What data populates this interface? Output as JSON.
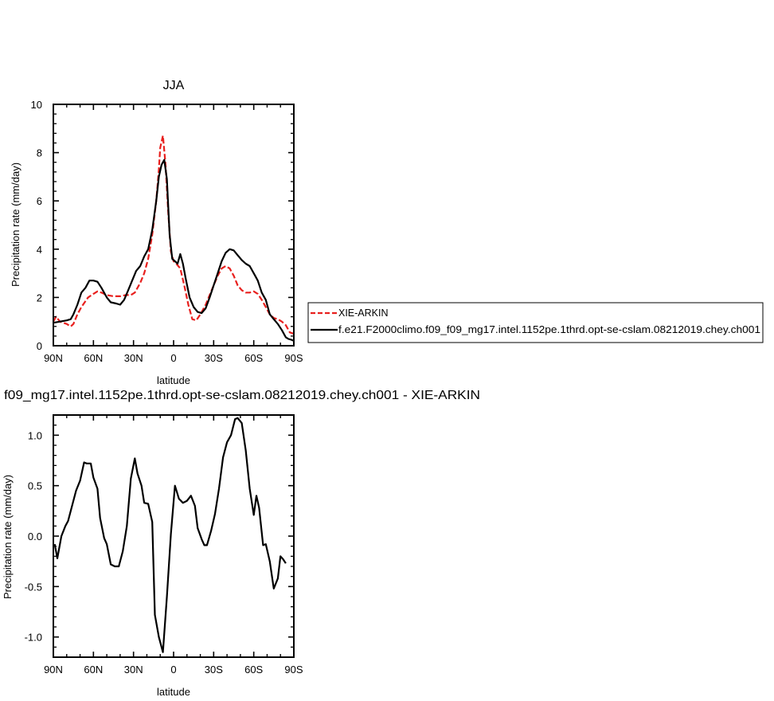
{
  "chart_data": [
    {
      "type": "line",
      "title": "JJA",
      "xlabel": "latitude",
      "ylabel": "Precipitation rate (mm/day)",
      "xlim": [
        90,
        -90
      ],
      "ylim": [
        0,
        10
      ],
      "x_ticks": [
        90,
        60,
        30,
        0,
        -30,
        -60,
        -90
      ],
      "x_tick_labels": [
        "90N",
        "60N",
        "30N",
        "0",
        "30S",
        "60S",
        "90S"
      ],
      "y_ticks": [
        0,
        2,
        4,
        6,
        8,
        10
      ],
      "y_tick_labels": [
        "0",
        "2",
        "4",
        "6",
        "8",
        "10"
      ],
      "legend_position": "right",
      "series": [
        {
          "name": "XIE-ARKIN",
          "color": "#e8201e",
          "dash": "dashed",
          "points": [
            [
              90,
              1.0
            ],
            [
              88,
              1.2
            ],
            [
              85,
              1.0
            ],
            [
              80,
              0.9
            ],
            [
              77,
              0.8
            ],
            [
              75,
              0.9
            ],
            [
              72,
              1.3
            ],
            [
              69,
              1.6
            ],
            [
              64,
              2.0
            ],
            [
              60,
              2.15
            ],
            [
              57,
              2.25
            ],
            [
              54,
              2.2
            ],
            [
              50,
              2.1
            ],
            [
              45,
              2.05
            ],
            [
              40,
              2.05
            ],
            [
              36,
              2.1
            ],
            [
              32,
              2.1
            ],
            [
              29,
              2.2
            ],
            [
              25,
              2.6
            ],
            [
              22,
              3.0
            ],
            [
              19,
              3.6
            ],
            [
              16,
              4.6
            ],
            [
              13,
              6.0
            ],
            [
              11,
              7.3
            ],
            [
              10,
              8.2
            ],
            [
              8,
              8.7
            ],
            [
              6,
              7.5
            ],
            [
              4,
              5.5
            ],
            [
              2,
              3.9
            ],
            [
              0,
              3.5
            ],
            [
              -2,
              3.4
            ],
            [
              -5,
              3.2
            ],
            [
              -8,
              2.5
            ],
            [
              -11,
              1.7
            ],
            [
              -14,
              1.1
            ],
            [
              -17,
              1.05
            ],
            [
              -20,
              1.3
            ],
            [
              -24,
              1.7
            ],
            [
              -27,
              2.1
            ],
            [
              -30,
              2.5
            ],
            [
              -33,
              2.9
            ],
            [
              -36,
              3.2
            ],
            [
              -39,
              3.3
            ],
            [
              -42,
              3.2
            ],
            [
              -45,
              2.9
            ],
            [
              -48,
              2.5
            ],
            [
              -51,
              2.3
            ],
            [
              -54,
              2.2
            ],
            [
              -57,
              2.2
            ],
            [
              -60,
              2.25
            ],
            [
              -63,
              2.15
            ],
            [
              -66,
              1.9
            ],
            [
              -69,
              1.6
            ],
            [
              -72,
              1.3
            ],
            [
              -75,
              1.15
            ],
            [
              -78,
              1.1
            ],
            [
              -81,
              1.0
            ],
            [
              -84,
              0.85
            ],
            [
              -87,
              0.55
            ],
            [
              -90,
              0.5
            ]
          ]
        },
        {
          "name": "f.e21.F2000climo.f09_f09_mg17.intel.1152pe.1thrd.opt-se-cslam.08212019.chey.ch001",
          "color": "#000000",
          "dash": "solid",
          "points": [
            [
              90,
              0.95
            ],
            [
              85,
              1.0
            ],
            [
              80,
              1.05
            ],
            [
              77,
              1.1
            ],
            [
              75,
              1.3
            ],
            [
              72,
              1.7
            ],
            [
              69,
              2.2
            ],
            [
              66,
              2.4
            ],
            [
              63,
              2.7
            ],
            [
              60,
              2.7
            ],
            [
              57,
              2.65
            ],
            [
              54,
              2.4
            ],
            [
              50,
              2.0
            ],
            [
              47,
              1.8
            ],
            [
              43,
              1.75
            ],
            [
              40,
              1.7
            ],
            [
              37,
              1.9
            ],
            [
              34,
              2.3
            ],
            [
              31,
              2.7
            ],
            [
              28,
              3.1
            ],
            [
              25,
              3.3
            ],
            [
              22,
              3.7
            ],
            [
              19,
              4.0
            ],
            [
              16,
              4.8
            ],
            [
              13,
              6.0
            ],
            [
              11,
              7.0
            ],
            [
              9,
              7.5
            ],
            [
              7,
              7.7
            ],
            [
              5,
              6.9
            ],
            [
              3,
              4.6
            ],
            [
              1,
              3.6
            ],
            [
              -1,
              3.5
            ],
            [
              -3,
              3.4
            ],
            [
              -5,
              3.8
            ],
            [
              -7,
              3.4
            ],
            [
              -9,
              2.8
            ],
            [
              -12,
              2.0
            ],
            [
              -15,
              1.6
            ],
            [
              -18,
              1.4
            ],
            [
              -21,
              1.35
            ],
            [
              -24,
              1.55
            ],
            [
              -27,
              2.0
            ],
            [
              -30,
              2.5
            ],
            [
              -33,
              3.0
            ],
            [
              -36,
              3.5
            ],
            [
              -39,
              3.85
            ],
            [
              -42,
              4.0
            ],
            [
              -45,
              3.95
            ],
            [
              -48,
              3.75
            ],
            [
              -51,
              3.55
            ],
            [
              -54,
              3.4
            ],
            [
              -57,
              3.3
            ],
            [
              -60,
              3.0
            ],
            [
              -63,
              2.7
            ],
            [
              -66,
              2.2
            ],
            [
              -69,
              1.9
            ],
            [
              -72,
              1.3
            ],
            [
              -75,
              1.1
            ],
            [
              -78,
              0.9
            ],
            [
              -81,
              0.65
            ],
            [
              -84,
              0.35
            ],
            [
              -86,
              0.28
            ],
            [
              -88,
              0.25
            ],
            [
              -90,
              0.2
            ]
          ]
        }
      ]
    },
    {
      "type": "line",
      "title": "f09_mg17.intel.1152pe.1thrd.opt-se-cslam.08212019.chey.ch001 - XIE-ARKIN",
      "xlabel": "latitude",
      "ylabel": "Precipitation rate (mm/day)",
      "xlim": [
        90,
        -90
      ],
      "ylim": [
        -1.2,
        1.2
      ],
      "x_ticks": [
        90,
        60,
        30,
        0,
        -30,
        -60,
        -90
      ],
      "x_tick_labels": [
        "90N",
        "60N",
        "30N",
        "0",
        "30S",
        "60S",
        "90S"
      ],
      "y_ticks": [
        -1.0,
        -0.5,
        0.0,
        0.5,
        1.0
      ],
      "y_tick_labels": [
        "-1.0",
        "-0.5",
        "0.0",
        "0.5",
        "1.0"
      ],
      "series": [
        {
          "color": "#000000",
          "dash": "solid",
          "points": [
            [
              89,
              -0.08
            ],
            [
              87,
              -0.22
            ],
            [
              84,
              0.0
            ],
            [
              81,
              0.1
            ],
            [
              79,
              0.15
            ],
            [
              76,
              0.3
            ],
            [
              73,
              0.45
            ],
            [
              70,
              0.55
            ],
            [
              67,
              0.73
            ],
            [
              65,
              0.72
            ],
            [
              62,
              0.72
            ],
            [
              60,
              0.58
            ],
            [
              57,
              0.47
            ],
            [
              55,
              0.18
            ],
            [
              52,
              -0.02
            ],
            [
              50,
              -0.08
            ],
            [
              47,
              -0.28
            ],
            [
              44,
              -0.3
            ],
            [
              41,
              -0.3
            ],
            [
              38,
              -0.15
            ],
            [
              35,
              0.1
            ],
            [
              32,
              0.57
            ],
            [
              29,
              0.77
            ],
            [
              27,
              0.62
            ],
            [
              24,
              0.5
            ],
            [
              22,
              0.33
            ],
            [
              19,
              0.32
            ],
            [
              16,
              0.14
            ],
            [
              14,
              -0.78
            ],
            [
              11,
              -1.0
            ],
            [
              8,
              -1.15
            ],
            [
              5,
              -0.6
            ],
            [
              2,
              0.02
            ],
            [
              -1,
              0.5
            ],
            [
              -4,
              0.37
            ],
            [
              -7,
              0.33
            ],
            [
              -10,
              0.35
            ],
            [
              -13,
              0.4
            ],
            [
              -16,
              0.3
            ],
            [
              -18,
              0.08
            ],
            [
              -21,
              -0.03
            ],
            [
              -23,
              -0.09
            ],
            [
              -25,
              -0.09
            ],
            [
              -28,
              0.05
            ],
            [
              -31,
              0.22
            ],
            [
              -34,
              0.47
            ],
            [
              -37,
              0.78
            ],
            [
              -40,
              0.93
            ],
            [
              -43,
              1.0
            ],
            [
              -46,
              1.16
            ],
            [
              -48,
              1.17
            ],
            [
              -51,
              1.12
            ],
            [
              -54,
              0.85
            ],
            [
              -57,
              0.47
            ],
            [
              -60,
              0.21
            ],
            [
              -62,
              0.4
            ],
            [
              -64,
              0.28
            ],
            [
              -67,
              -0.09
            ],
            [
              -69,
              -0.08
            ],
            [
              -72,
              -0.25
            ],
            [
              -75,
              -0.52
            ],
            [
              -78,
              -0.42
            ],
            [
              -80,
              -0.2
            ],
            [
              -82,
              -0.23
            ],
            [
              -84,
              -0.27
            ]
          ]
        }
      ]
    }
  ]
}
